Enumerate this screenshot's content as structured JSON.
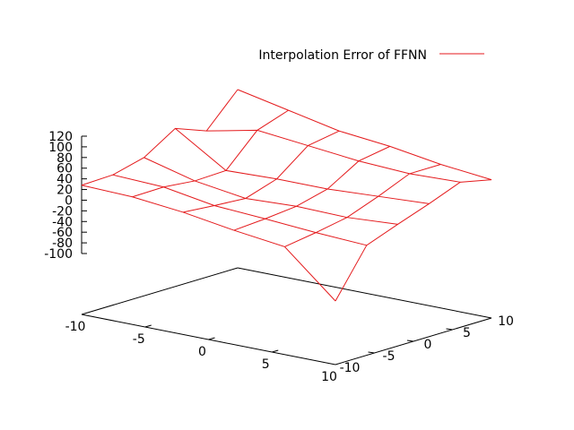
{
  "chart_data": {
    "type": "surface",
    "title": "",
    "x_axis": {
      "range": [
        -10,
        10
      ],
      "ticks": [
        "-10",
        "-5",
        "0",
        "5",
        "10"
      ]
    },
    "y_axis": {
      "range": [
        -10,
        10
      ],
      "ticks": [
        "-10",
        "-5",
        "0",
        "5",
        "10"
      ]
    },
    "z_axis": {
      "range": [
        -100,
        120
      ],
      "ticks": [
        "120",
        "100",
        "80",
        "60",
        "40",
        "20",
        "0",
        "-20",
        "-40",
        "-60",
        "-80",
        "-100"
      ]
    },
    "legend": {
      "placement": "top-right",
      "entries": [
        {
          "label": "Interpolation Error of FFNN",
          "color": "#e41a1c"
        }
      ]
    },
    "series": [
      {
        "name": "Interpolation Error of FFNN",
        "color": "#e41a1c",
        "grid_x": [
          -10,
          -6,
          -2,
          2,
          6,
          10
        ],
        "grid_y": [
          -10,
          -6,
          -2,
          2,
          6,
          10
        ],
        "z": [
          [
            28,
            25,
            15,
            0,
            -12,
            -95
          ],
          [
            30,
            26,
            10,
            4,
            -3,
            -8
          ],
          [
            45,
            20,
            6,
            10,
            8,
            14
          ],
          [
            82,
            22,
            25,
            25,
            30,
            35
          ],
          [
            60,
            80,
            70,
            60,
            55,
            58
          ],
          [
            120,
            100,
            80,
            70,
            55,
            45
          ]
        ]
      }
    ]
  }
}
